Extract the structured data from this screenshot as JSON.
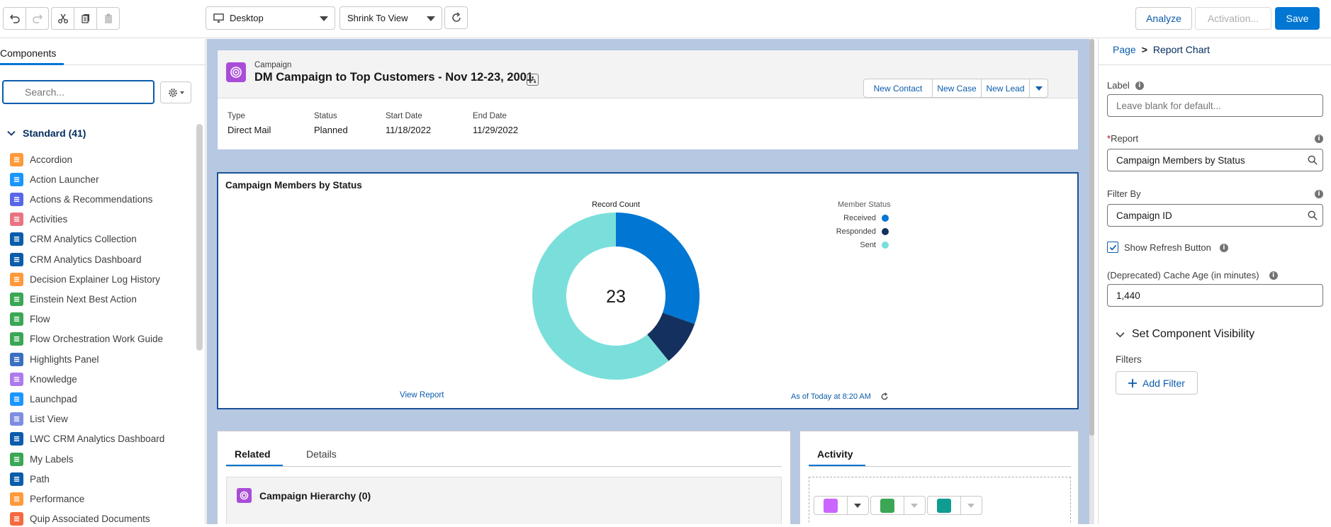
{
  "toolbar": {
    "device_select": "Desktop",
    "view_select": "Shrink To View",
    "analyze_label": "Analyze",
    "activation_label": "Activation...",
    "save_label": "Save"
  },
  "left_panel": {
    "tab_label": "Components",
    "search_placeholder": "Search...",
    "section_label": "Standard (41)",
    "components": [
      {
        "label": "Accordion",
        "color": "#ff9a3c"
      },
      {
        "label": "Action Launcher",
        "color": "#1b96ff"
      },
      {
        "label": "Actions & Recommendations",
        "color": "#5867e8"
      },
      {
        "label": "Activities",
        "color": "#ea7480"
      },
      {
        "label": "CRM Analytics Collection",
        "color": "#0b5cab"
      },
      {
        "label": "CRM Analytics Dashboard",
        "color": "#0b5cab"
      },
      {
        "label": "Decision Explainer Log History",
        "color": "#ff9a3c"
      },
      {
        "label": "Einstein Next Best Action",
        "color": "#3ba755"
      },
      {
        "label": "Flow",
        "color": "#3ba755"
      },
      {
        "label": "Flow Orchestration Work Guide",
        "color": "#3ba755"
      },
      {
        "label": "Highlights Panel",
        "color": "#3a6fc2"
      },
      {
        "label": "Knowledge",
        "color": "#ad7bee"
      },
      {
        "label": "Launchpad",
        "color": "#1b96ff"
      },
      {
        "label": "List View",
        "color": "#7f8de1"
      },
      {
        "label": "LWC CRM Analytics Dashboard",
        "color": "#0b5cab"
      },
      {
        "label": "My Labels",
        "color": "#3ba755"
      },
      {
        "label": "Path",
        "color": "#0b5cab"
      },
      {
        "label": "Performance",
        "color": "#ff9a3c"
      },
      {
        "label": "Quip Associated Documents",
        "color": "#f4693f"
      }
    ]
  },
  "highlights": {
    "object_label": "Campaign",
    "record_title": "DM Campaign to Top Customers - Nov 12-23, 2001",
    "actions": [
      "New Contact",
      "New Case",
      "New Lead"
    ],
    "fields": [
      {
        "label": "Type",
        "value": "Direct Mail"
      },
      {
        "label": "Status",
        "value": "Planned"
      },
      {
        "label": "Start Date",
        "value": "11/18/2022"
      },
      {
        "label": "End Date",
        "value": "11/29/2022"
      }
    ]
  },
  "report_chart": {
    "title": "Campaign Members by Status",
    "measure_label": "Record Count",
    "legend_title": "Member Status",
    "total": "23",
    "view_report": "View Report",
    "as_of": "As of Today at 8:20 AM"
  },
  "chart_data": {
    "type": "pie",
    "title": "Campaign Members by Status",
    "categories": [
      "Received",
      "Responded",
      "Sent"
    ],
    "values": [
      7,
      2,
      14
    ],
    "colors": [
      "#0176d3",
      "#14305e",
      "#7adfda"
    ],
    "legend": "top-right"
  },
  "related": {
    "tabs": [
      "Related",
      "Details"
    ],
    "list_title": "Campaign Hierarchy (0)"
  },
  "activity": {
    "tab_label": "Activity"
  },
  "properties": {
    "breadcrumb_root": "Page",
    "breadcrumb_sep": ">",
    "breadcrumb_current": "Report Chart",
    "label_label": "Label",
    "label_placeholder": "Leave blank for default...",
    "report_required": "*",
    "report_label": "Report",
    "report_value": "Campaign Members by Status",
    "filter_label": "Filter By",
    "filter_value": "Campaign ID",
    "refresh_label": "Show Refresh Button",
    "cache_label": "(Deprecated) Cache Age (in minutes)",
    "cache_value": "1,440",
    "visibility_label": "Set Component Visibility",
    "filters_label": "Filters",
    "add_filter_label": "Add Filter"
  }
}
